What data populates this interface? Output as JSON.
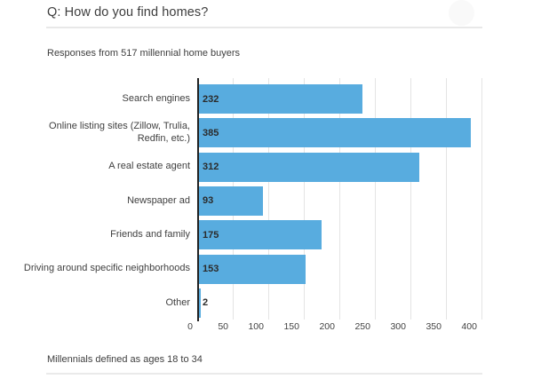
{
  "page": {
    "title": "Q: How do you find homes?",
    "subtitle": "Responses from 517 millennial home buyers",
    "footnote": "Millennials defined as ages 18 to 34"
  },
  "chart_data": {
    "type": "bar",
    "orientation": "horizontal",
    "title": "Q: How do you find homes?",
    "subtitle": "Responses from 517 millennial home buyers",
    "note": "Millennials defined as ages 18 to 34",
    "categories": [
      "Search engines",
      "Online listing sites (Zillow, Trulia, Redfin, etc.)",
      "A real estate agent",
      "Newspaper ad",
      "Friends and family",
      "Driving around specific neighborhoods",
      "Other"
    ],
    "category_label_lines": [
      [
        "Search engines"
      ],
      [
        "Online listing sites (Zillow, Trulia,",
        "Redfin, etc.)"
      ],
      [
        "A real estate agent"
      ],
      [
        "Newspaper ad"
      ],
      [
        "Friends and family"
      ],
      [
        "Driving around specific neighborhoods"
      ],
      [
        "Other"
      ]
    ],
    "values": [
      232,
      385,
      312,
      93,
      175,
      153,
      2
    ],
    "value_labels": [
      "232",
      "385",
      "312",
      "93",
      "175",
      "153",
      "2"
    ],
    "xlabel": "",
    "ylabel": "",
    "xlim": [
      0,
      400
    ],
    "xticks": [
      0,
      50,
      100,
      150,
      200,
      250,
      300,
      350,
      400
    ],
    "grid": true,
    "legend": "none"
  },
  "colors": {
    "bar": "#58ACDF",
    "axis": "#212121",
    "gridline": "#e4e4e4",
    "divider": "#e8e8e8",
    "title_text": "#3d3d3d",
    "body_text": "#3e3e3e",
    "value_text": "#2b2b2b"
  }
}
